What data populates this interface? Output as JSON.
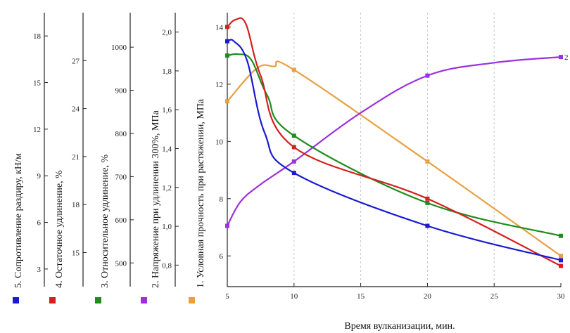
{
  "chart_data": {
    "type": "line",
    "xlabel": "Время вулканизации, мин.",
    "x_ticks": [
      5,
      10,
      15,
      20,
      25,
      30
    ],
    "xlim": [
      5,
      30
    ],
    "grid": "vertical dashed",
    "primary_axis": {
      "label": "1. Условная прочность при растяжении, МПа",
      "ticks": [
        6,
        8,
        10,
        12,
        14
      ],
      "range": [
        5,
        14.5
      ]
    },
    "secondary_axes": [
      {
        "label": "2. Напряжение при удлинении 300%, МПа",
        "ticks": [
          "0,8",
          "1,0",
          "1,2",
          "1,4",
          "1,6",
          "1,8",
          "2,0"
        ],
        "range": [
          0.7,
          2.1
        ]
      },
      {
        "label": "3. Относительное удлинение, %",
        "ticks": [
          500,
          600,
          700,
          800,
          900,
          1000
        ],
        "range": [
          450,
          1080
        ]
      },
      {
        "label": "4. Остаточное удлинение, %",
        "ticks": [
          15,
          18,
          21,
          24,
          27
        ],
        "range": [
          13,
          30
        ]
      },
      {
        "label": "5. Сопротивление раздиру, кН/м",
        "ticks": [
          3,
          6,
          9,
          12,
          15,
          18
        ],
        "range": [
          2,
          19.5
        ]
      }
    ],
    "series": [
      {
        "label_marker": "1",
        "color": "#e8a040",
        "x": [
          5,
          10,
          20,
          30
        ],
        "y": [
          11.4,
          12.5,
          9.3,
          6.0
        ]
      },
      {
        "label_marker": "2",
        "color": "#9b30e0",
        "x": [
          5,
          10,
          20,
          30
        ],
        "y": [
          7.05,
          9.3,
          12.3,
          12.95
        ]
      },
      {
        "label_marker": "3",
        "color": "#1e8c1e",
        "x": [
          5,
          10,
          20,
          30
        ],
        "y": [
          13.0,
          10.2,
          7.85,
          6.7
        ]
      },
      {
        "label_marker": "4",
        "color": "#d42020",
        "x": [
          5,
          10,
          20,
          30
        ],
        "y": [
          14.0,
          9.8,
          8.0,
          5.65
        ]
      },
      {
        "label_marker": "5",
        "color": "#1a1ad0",
        "x": [
          5,
          10,
          20,
          30
        ],
        "y": [
          13.5,
          8.9,
          7.05,
          5.85
        ]
      }
    ],
    "right_edge_marker_label": "2"
  }
}
